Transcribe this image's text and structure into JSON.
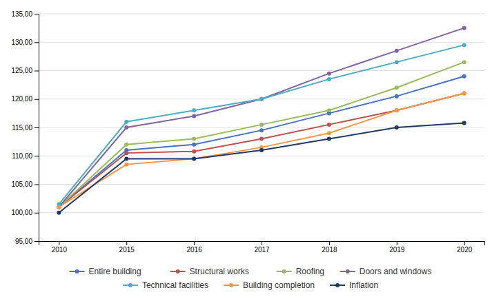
{
  "chart_data": {
    "type": "line",
    "categories": [
      "2010",
      "2015",
      "2016",
      "2017",
      "2018",
      "2019",
      "2020"
    ],
    "series": [
      {
        "name": "Entire building",
        "color": "#4472C4",
        "values": [
          101.0,
          111.0,
          112.0,
          114.5,
          117.5,
          120.5,
          124.0
        ]
      },
      {
        "name": "Structural works",
        "color": "#C0504D",
        "values": [
          101.0,
          110.5,
          110.8,
          113.0,
          115.5,
          118.0,
          121.0
        ]
      },
      {
        "name": "Roofing",
        "color": "#9BBB59",
        "values": [
          101.0,
          112.0,
          113.0,
          115.5,
          118.0,
          122.0,
          126.5
        ]
      },
      {
        "name": "Doors and windows",
        "color": "#8064A2",
        "values": [
          101.0,
          115.0,
          117.0,
          120.0,
          124.5,
          128.5,
          132.5
        ]
      },
      {
        "name": "Technical facilities",
        "color": "#4BACC6",
        "values": [
          101.5,
          116.0,
          118.0,
          120.0,
          123.5,
          126.5,
          129.5
        ]
      },
      {
        "name": "Building completion",
        "color": "#F79646",
        "values": [
          101.0,
          108.5,
          109.5,
          111.5,
          114.0,
          118.0,
          121.0
        ]
      },
      {
        "name": "Inflation",
        "color": "#1F3864",
        "values": [
          100.0,
          109.5,
          109.5,
          111.0,
          113.0,
          115.0,
          115.8
        ]
      }
    ],
    "ylim": [
      95.0,
      135.0
    ],
    "yticks": [
      {
        "value": 95.0,
        "label": "95,00"
      },
      {
        "value": 100.0,
        "label": "100,00"
      },
      {
        "value": 105.0,
        "label": "105,00"
      },
      {
        "value": 110.0,
        "label": "110,00"
      },
      {
        "value": 115.0,
        "label": "115,00"
      },
      {
        "value": 120.0,
        "label": "120,00"
      },
      {
        "value": 125.0,
        "label": "125,00"
      },
      {
        "value": 130.0,
        "label": "130,00"
      },
      {
        "value": 135.0,
        "label": "135,00"
      }
    ],
    "grid": true,
    "legend": "bottom",
    "marker": "circle",
    "line_style": "solid"
  }
}
